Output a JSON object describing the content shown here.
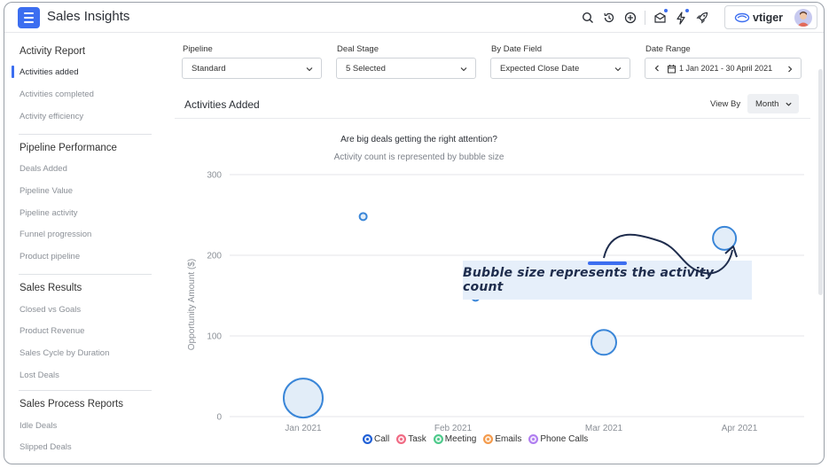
{
  "header": {
    "title": "Sales Insights",
    "brand": "vtiger"
  },
  "sidebar": {
    "sections": [
      {
        "title": "Activity Report",
        "items": [
          "Activities added",
          "Activities completed",
          "Activity efficiency"
        ]
      },
      {
        "title": "Pipeline Performance",
        "items": [
          "Deals Added",
          "Pipeline Value",
          "Pipeline activity",
          "Funnel progression",
          "Product pipeline"
        ]
      },
      {
        "title": "Sales Results",
        "items": [
          "Closed vs Goals",
          "Product Revenue",
          "Sales Cycle by Duration",
          "Lost Deals"
        ]
      },
      {
        "title": "Sales Process Reports",
        "items": [
          "Idle Deals",
          "Slipped Deals"
        ]
      }
    ],
    "active": "Activities added"
  },
  "filters": {
    "pipeline": {
      "label": "Pipeline",
      "value": "Standard"
    },
    "deal_stage": {
      "label": "Deal Stage",
      "value": "5 Selected"
    },
    "date_field": {
      "label": "By Date Field",
      "value": "Expected Close Date"
    },
    "date_range": {
      "label": "Date Range",
      "value": "1 Jan 2021 - 30 April 2021"
    }
  },
  "panel": {
    "title": "Activities Added",
    "view_by_label": "View By",
    "view_by_value": "Month"
  },
  "callout": "Bubble size represents the activity count",
  "colors": {
    "accent": "#3c6ef0",
    "bubble_stroke": "#3a86d8",
    "bubble_fill": "#e2edf8",
    "call": "#1f5fd6",
    "task": "#f06a83",
    "meeting": "#4cc98a",
    "emails": "#f49a4b",
    "phone_calls": "#b07ef0"
  },
  "chart_data": {
    "type": "scatter",
    "title": "Are big deals getting the right attention?",
    "subtitle": "Activity count is represented by bubble size",
    "ylabel": "Opportunity Amount ($)",
    "ylim": [
      0,
      300
    ],
    "yticks": [
      0,
      100,
      200,
      300
    ],
    "x_categories": [
      "Jan 2021",
      "Feb 2021",
      "Mar 2021",
      "Apr 2021"
    ],
    "grid": true,
    "legend_position": "bottom",
    "legend": [
      "Call",
      "Task",
      "Meeting",
      "Emails",
      "Phone Calls"
    ],
    "points": [
      {
        "x": "Jan 2021",
        "x_offset": 0.0,
        "y": 23,
        "size": 22
      },
      {
        "x": "Jan 2021",
        "x_offset": 0.4,
        "y": 248,
        "size": 4
      },
      {
        "x": "Feb 2021",
        "x_offset": 0.15,
        "y": 148,
        "size": 4
      },
      {
        "x": "Mar 2021",
        "x_offset": 0.0,
        "y": 92,
        "size": 14
      },
      {
        "x": "Apr 2021",
        "x_offset": -0.1,
        "y": 221,
        "size": 13
      }
    ]
  }
}
